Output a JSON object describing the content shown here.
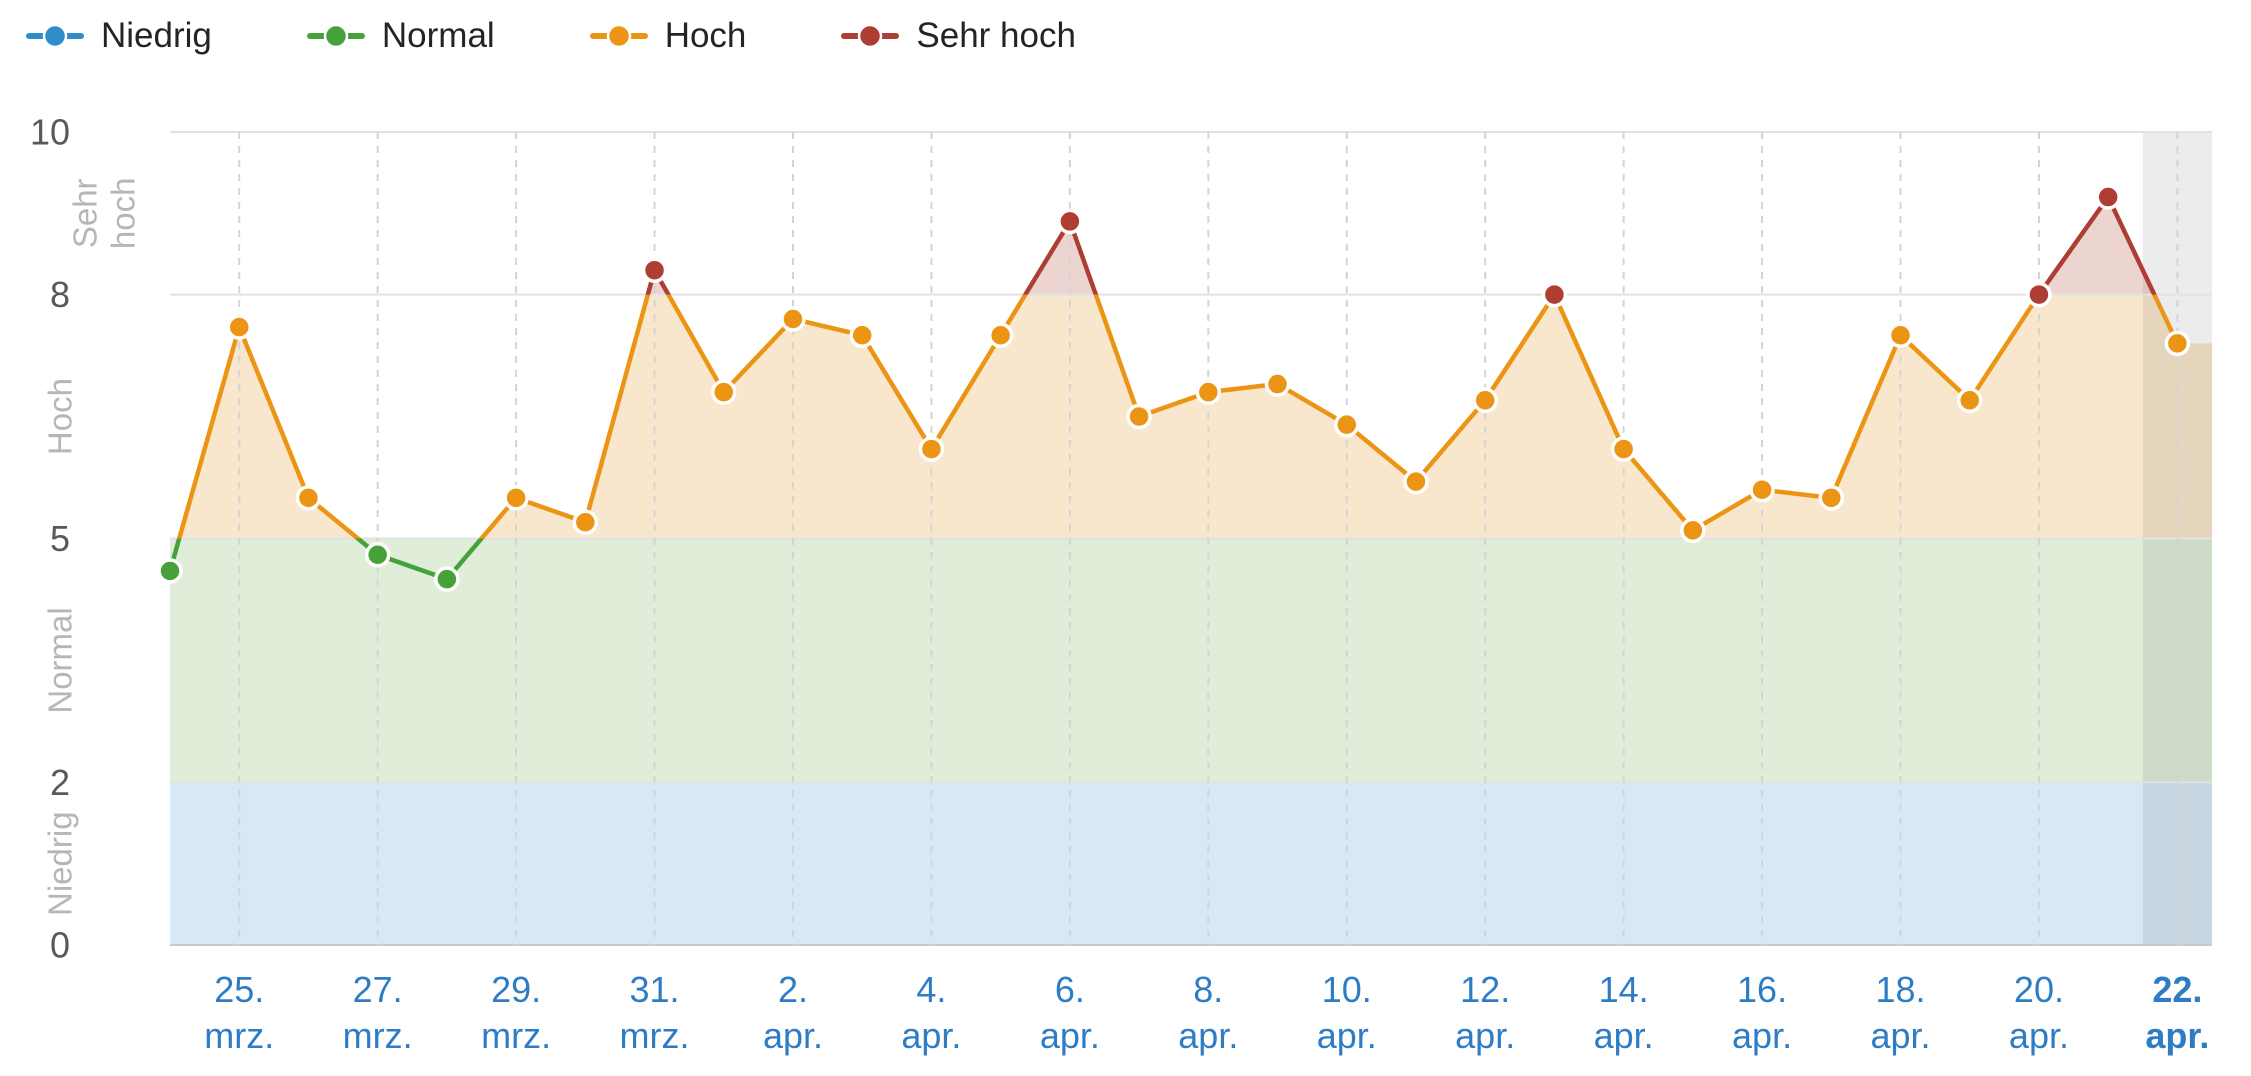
{
  "legend": {
    "items": [
      {
        "id": "niedrig",
        "label": "Niedrig",
        "color": "#2f8dca"
      },
      {
        "id": "normal",
        "label": "Normal",
        "color": "#46a13a"
      },
      {
        "id": "hoch",
        "label": "Hoch",
        "color": "#ec9414"
      },
      {
        "id": "sehr-hoch",
        "label": "Sehr hoch",
        "color": "#ae3e33"
      }
    ]
  },
  "chart_data": {
    "type": "line",
    "title": "",
    "dates": [
      "24. mrz.",
      "25. mrz.",
      "26. mrz.",
      "27. mrz.",
      "28. mrz.",
      "29. mrz.",
      "30. mrz.",
      "31. mrz.",
      "1. apr.",
      "2. apr.",
      "3. apr.",
      "4. apr.",
      "5. apr.",
      "6. apr.",
      "7. apr.",
      "8. apr.",
      "9. apr.",
      "10. apr.",
      "11. apr.",
      "12. apr.",
      "13. apr.",
      "14. apr.",
      "15. apr.",
      "16. apr.",
      "17. apr.",
      "18. apr.",
      "19. apr.",
      "20. apr.",
      "21. apr.",
      "22. apr."
    ],
    "values": [
      4.6,
      7.6,
      5.5,
      4.8,
      4.5,
      5.5,
      5.2,
      8.3,
      6.8,
      7.7,
      7.5,
      6.1,
      7.5,
      8.9,
      6.5,
      6.8,
      6.9,
      6.4,
      5.7,
      6.7,
      8.0,
      6.1,
      5.1,
      5.6,
      5.5,
      7.5,
      6.7,
      8.0,
      9.2,
      7.4
    ],
    "ylim": [
      0,
      10
    ],
    "y_ticks": [
      0,
      2,
      5,
      8,
      10
    ],
    "zones": [
      {
        "id": "niedrig",
        "label": "Niedrig",
        "from": 0,
        "to": 2,
        "color": "#2f8dca",
        "band_fill": "#d8e8f4",
        "band_full_width": true,
        "axis_label_lines": [
          "Niedrig"
        ]
      },
      {
        "id": "normal",
        "label": "Normal",
        "from": 2,
        "to": 5,
        "color": "#46a13a",
        "band_fill": "#dfedd9",
        "band_full_width": true,
        "axis_label_lines": [
          "Normal"
        ]
      },
      {
        "id": "hoch",
        "label": "Hoch",
        "from": 5,
        "to": 8,
        "color": "#ec9414",
        "band_fill": "#f8e7cd",
        "band_full_width": false,
        "axis_label_lines": [
          "Hoch"
        ]
      },
      {
        "id": "sehr-hoch",
        "label": "Sehr hoch",
        "from": 8,
        "to": 10,
        "color": "#ae3e33",
        "band_fill": "#ecd4d1",
        "band_full_width": false,
        "axis_label_lines": [
          "Sehr",
          "hoch"
        ]
      }
    ],
    "x_tick_labels": [
      {
        "index": 1,
        "line1": "25.",
        "line2": "mrz.",
        "bold": false
      },
      {
        "index": 3,
        "line1": "27.",
        "line2": "mrz.",
        "bold": false
      },
      {
        "index": 5,
        "line1": "29.",
        "line2": "mrz.",
        "bold": false
      },
      {
        "index": 7,
        "line1": "31.",
        "line2": "mrz.",
        "bold": false
      },
      {
        "index": 9,
        "line1": "2.",
        "line2": "apr.",
        "bold": false
      },
      {
        "index": 11,
        "line1": "4.",
        "line2": "apr.",
        "bold": false
      },
      {
        "index": 13,
        "line1": "6.",
        "line2": "apr.",
        "bold": false
      },
      {
        "index": 15,
        "line1": "8.",
        "line2": "apr.",
        "bold": false
      },
      {
        "index": 17,
        "line1": "10.",
        "line2": "apr.",
        "bold": false
      },
      {
        "index": 19,
        "line1": "12.",
        "line2": "apr.",
        "bold": false
      },
      {
        "index": 21,
        "line1": "14.",
        "line2": "apr.",
        "bold": false
      },
      {
        "index": 23,
        "line1": "16.",
        "line2": "apr.",
        "bold": false
      },
      {
        "index": 25,
        "line1": "18.",
        "line2": "apr.",
        "bold": false
      },
      {
        "index": 27,
        "line1": "20.",
        "line2": "apr.",
        "bold": false
      },
      {
        "index": 29,
        "line1": "22.",
        "line2": "apr.",
        "bold": true
      }
    ],
    "right_plot_band": {
      "from_index": 28.5,
      "color": "rgba(0,0,0,0.075)"
    },
    "colors": {
      "x_label_text": "#2e7cc4",
      "y_tick_text": "#58595b",
      "zone_axis_label_text": "#b6b6b6",
      "grid_vertical": "#d4d4d4",
      "grid_horizontal": "#e2e2e2",
      "axis_line": "#c9c9c9"
    },
    "grid": {
      "vertical_dashed": true,
      "horizontal": true,
      "legend_position": "top-left"
    }
  }
}
